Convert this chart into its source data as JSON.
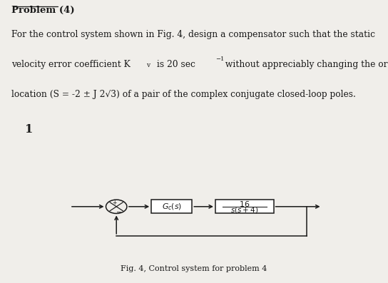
{
  "title": "Problem (4)",
  "line1": "For the control system shown in Fig. 4, design a compensator such that the static",
  "line2_a": "velocity error coefficient K",
  "line2_b": " is 20 sec",
  "line2_c": "-1",
  "line2_d": " without appreciably changing the original",
  "line3": "location (S = -2 ± J 2√3) of a pair of the complex conjugate closed-loop poles.",
  "page_number": "1",
  "fig_caption": "Fig. 4, Control system for problem 4",
  "gc_label": "$G_c(s)$",
  "plant_num": "16",
  "plant_den": "s(s + 4)",
  "bg_color": "#f0eeea",
  "divider_color": "#1c1c1c",
  "text_color": "#1a1a1a",
  "box_color": "#ffffff",
  "diagram_bg": "#e4e2de"
}
